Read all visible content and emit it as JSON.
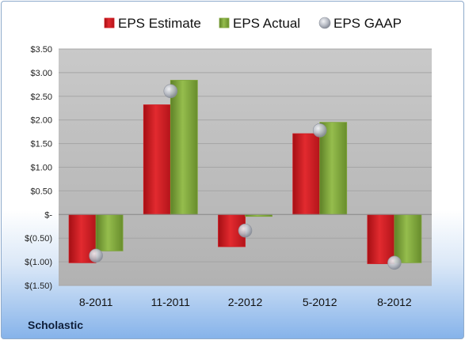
{
  "company": "Scholastic",
  "colors": {
    "estimate": "#d0181e",
    "actual": "#7fa53a",
    "gaap": "#b7bcc6"
  },
  "chart_data": {
    "type": "bar",
    "title": "",
    "xlabel": "",
    "ylabel": "",
    "categories": [
      "8-2011",
      "11-2011",
      "2-2012",
      "5-2012",
      "8-2012"
    ],
    "ylim": [
      -1.5,
      3.5
    ],
    "yticks": [
      3.5,
      3.0,
      2.5,
      2.0,
      1.5,
      1.0,
      0.5,
      0,
      -0.5,
      -1.0,
      -1.5
    ],
    "ytick_labels": [
      "$3.50",
      "$3.00",
      "$2.50",
      "$2.00",
      "$1.50",
      "$1.00",
      "$0.50",
      "$-",
      "$(0.50)",
      "$(1.00)",
      "$(1.50)"
    ],
    "grid": true,
    "legend_position": "top",
    "series": [
      {
        "name": "EPS Estimate",
        "kind": "bar",
        "values": [
          -1.02,
          2.32,
          -0.68,
          1.71,
          -1.04
        ]
      },
      {
        "name": "EPS Actual",
        "kind": "bar",
        "values": [
          -0.77,
          2.84,
          -0.04,
          1.95,
          -1.02
        ]
      },
      {
        "name": "EPS GAAP",
        "kind": "marker",
        "values": [
          -0.87,
          2.61,
          -0.34,
          1.78,
          -1.02
        ]
      }
    ]
  }
}
